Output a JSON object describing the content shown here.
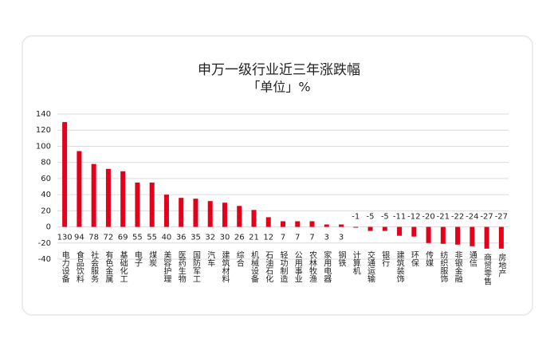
{
  "chart_data": {
    "type": "bar",
    "title": "申万一级行业近三年涨跌幅",
    "subtitle": "「单位」%",
    "categories": [
      "电力设备",
      "食品饮料",
      "社会服务",
      "有色金属",
      "基础化工",
      "电子",
      "煤炭",
      "美容护理",
      "医药生物",
      "国防军工",
      "汽车",
      "建筑材料",
      "综合",
      "机械设备",
      "石油石化",
      "轻功制造",
      "公用事业",
      "农林牧渔",
      "家用电器",
      "钢铁",
      "计算机",
      "交通运输",
      "银行",
      "建筑装饰",
      "环保",
      "传媒",
      "纺织服饰",
      "非银金融",
      "通信",
      "商贸零售",
      "房地产"
    ],
    "values": [
      130,
      94,
      78,
      72,
      69,
      55,
      55,
      40,
      36,
      35,
      32,
      30,
      26,
      21,
      12,
      7,
      7,
      7,
      3,
      3,
      -1,
      -5,
      -5,
      -11,
      -12,
      -20,
      -21,
      -22,
      -24,
      -27,
      -27
    ],
    "color": "#e3001b",
    "ylim": [
      -40,
      140
    ],
    "yticks": [
      -40,
      -20,
      0,
      20,
      40,
      60,
      80,
      100,
      120,
      140
    ],
    "grid": true
  }
}
